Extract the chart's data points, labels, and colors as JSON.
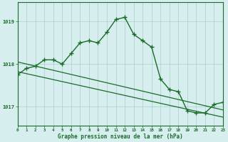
{
  "line1_x": [
    0,
    1,
    2,
    3,
    4,
    5,
    6,
    7,
    8,
    9,
    10,
    11,
    12,
    13,
    14,
    15,
    16,
    17,
    18,
    19,
    20,
    21,
    22,
    23
  ],
  "line1_y": [
    1017.75,
    1017.9,
    1017.95,
    1018.1,
    1018.1,
    1018.0,
    1018.25,
    1018.5,
    1018.55,
    1018.5,
    1018.75,
    1019.05,
    1019.1,
    1018.7,
    1018.55,
    1018.4,
    1017.65,
    1017.4,
    1017.35,
    1016.9,
    1016.85,
    1016.85,
    1017.05,
    1017.1
  ],
  "line2_x": [
    0,
    23
  ],
  "line2_y": [
    1018.05,
    1016.92
  ],
  "line3_x": [
    0,
    23
  ],
  "line3_y": [
    1017.82,
    1016.75
  ],
  "line_color": "#1a6b2a",
  "bg_color": "#d6eeee",
  "grid_color": "#aacccc",
  "xlabel": "Graphe pression niveau de la mer (hPa)",
  "ylabel_ticks": [
    1017,
    1018,
    1019
  ],
  "xlim": [
    0,
    23
  ],
  "ylim": [
    1016.55,
    1019.45
  ],
  "xtick_labels": [
    "0",
    "1",
    "2",
    "3",
    "4",
    "5",
    "6",
    "7",
    "8",
    "9",
    "10",
    "11",
    "12",
    "13",
    "14",
    "15",
    "16",
    "17",
    "18",
    "19",
    "20",
    "21",
    "22",
    "23"
  ]
}
